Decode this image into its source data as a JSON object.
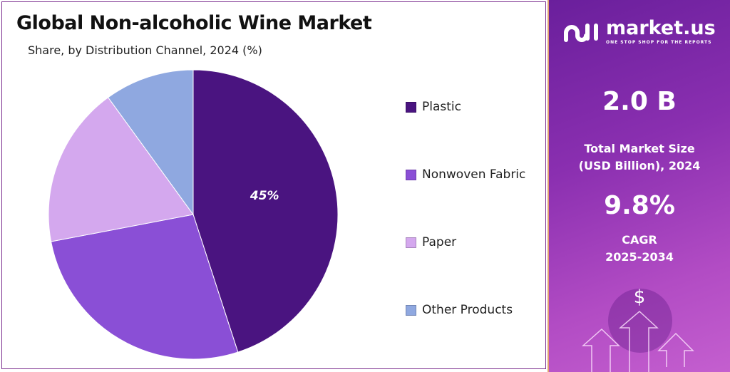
{
  "chart_data": {
    "type": "pie",
    "title": "Global Non-alcoholic Wine Market",
    "subtitle": "Share, by Distribution Channel, 2024 (%)",
    "categories": [
      "Plastic",
      "Nonwoven Fabric",
      "Paper",
      "Other Products"
    ],
    "values": [
      45,
      27,
      18,
      10
    ],
    "colors": [
      "#4a1480",
      "#8a4fd6",
      "#d4a8ee",
      "#8fa8e0"
    ],
    "data_labels": [
      "45%",
      "",
      "",
      ""
    ],
    "legend_position": "right"
  },
  "sidebar": {
    "brand": "market.us",
    "tagline": "ONE STOP SHOP FOR THE REPORTS",
    "market_size": "2.0 B",
    "market_size_label_1": "Total Market Size",
    "market_size_label_2": "(USD Billion), 2024",
    "cagr": "9.8%",
    "cagr_label_1": "CAGR",
    "cagr_label_2": "2025-2034",
    "dollar": "$"
  }
}
